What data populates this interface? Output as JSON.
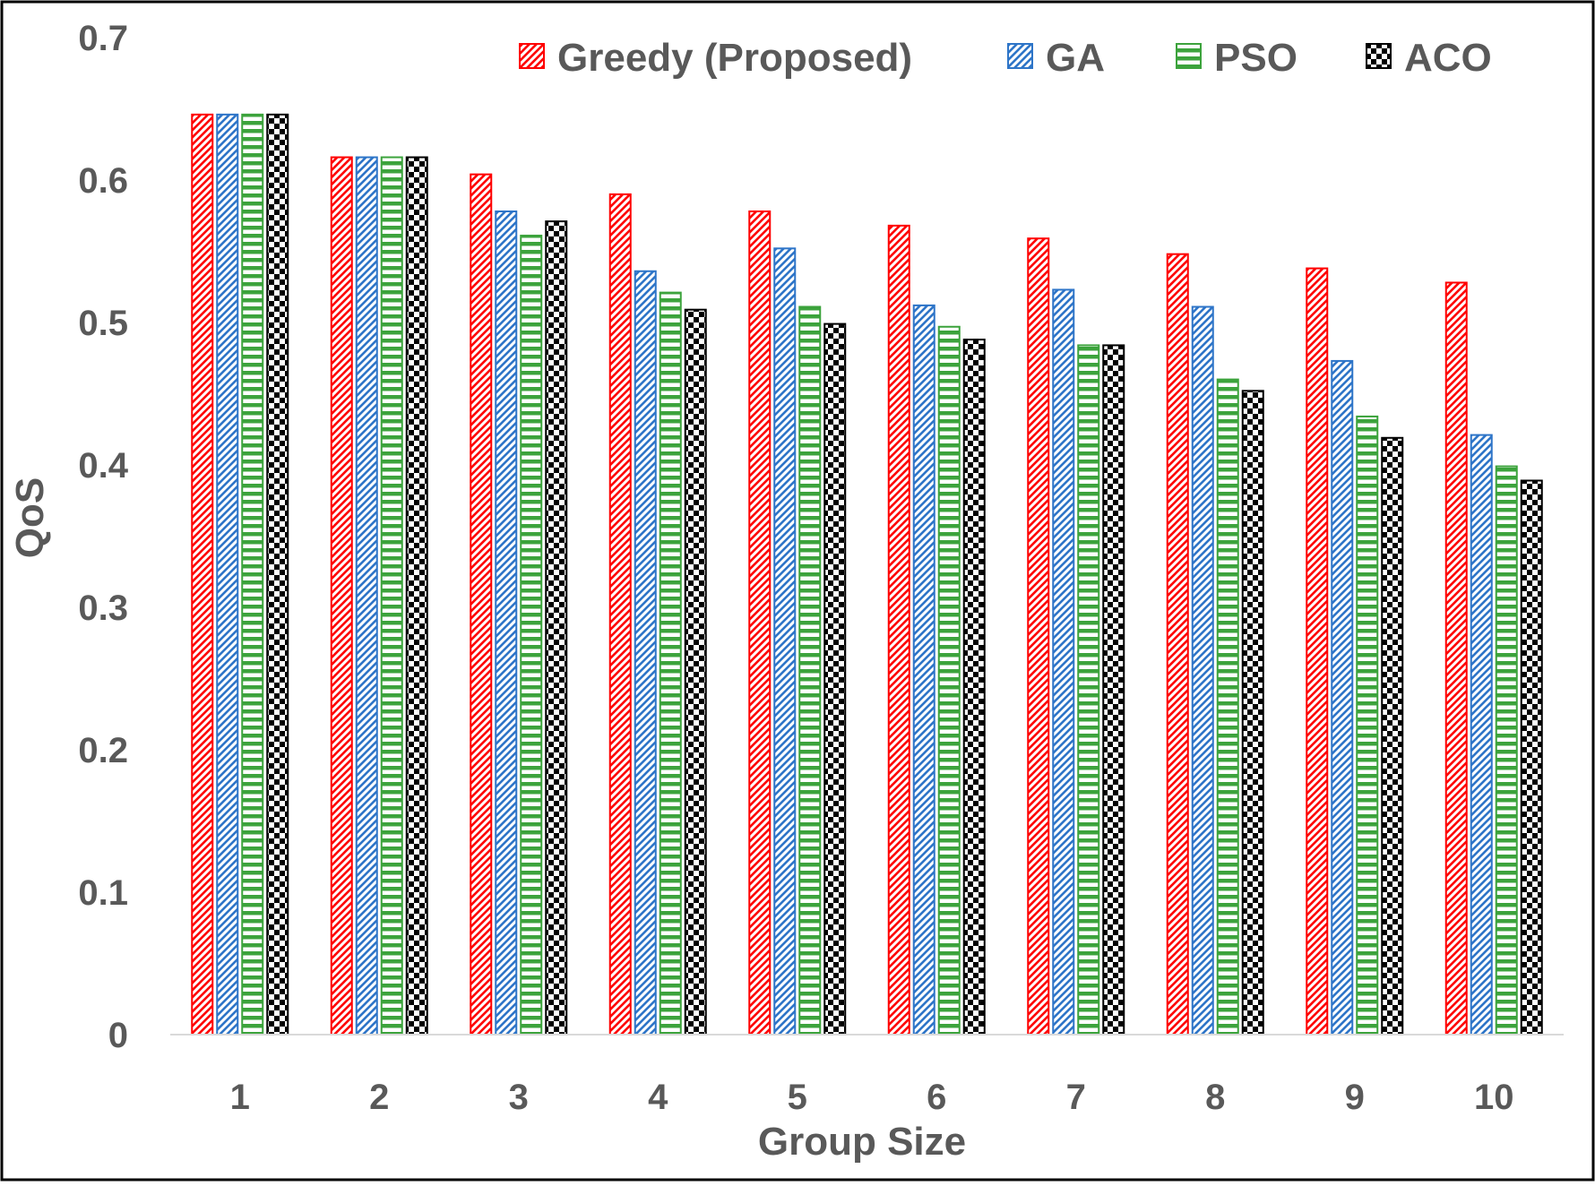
{
  "chart_data": {
    "type": "bar",
    "title": "",
    "xlabel": "Group Size",
    "ylabel": "QoS",
    "ylim": [
      0,
      0.7
    ],
    "yticks": [
      "0",
      "0.1",
      "0.2",
      "0.3",
      "0.4",
      "0.5",
      "0.6",
      "0.7"
    ],
    "ytick_values": [
      0,
      0.1,
      0.2,
      0.3,
      0.4,
      0.5,
      0.6,
      0.7
    ],
    "categories": [
      "1",
      "2",
      "3",
      "4",
      "5",
      "6",
      "7",
      "8",
      "9",
      "10"
    ],
    "grid": false,
    "legend_position": "top-right",
    "series": [
      {
        "name": "Greedy (Proposed)",
        "color": "#ff0000",
        "pattern": "diagonal-stripes",
        "values": [
          0.646,
          0.616,
          0.604,
          0.59,
          0.578,
          0.568,
          0.559,
          0.548,
          0.538,
          0.528
        ]
      },
      {
        "name": "GA",
        "color": "#2e75c8",
        "pattern": "diagonal-stripes",
        "values": [
          0.646,
          0.616,
          0.578,
          0.536,
          0.552,
          0.512,
          0.523,
          0.511,
          0.473,
          0.421
        ]
      },
      {
        "name": "PSO",
        "color": "#3ca33c",
        "pattern": "horizontal-stripes",
        "values": [
          0.646,
          0.616,
          0.561,
          0.521,
          0.511,
          0.497,
          0.484,
          0.46,
          0.434,
          0.399
        ]
      },
      {
        "name": "ACO",
        "color": "#000000",
        "pattern": "checkerboard",
        "values": [
          0.646,
          0.616,
          0.571,
          0.509,
          0.499,
          0.488,
          0.484,
          0.452,
          0.419,
          0.389
        ]
      }
    ]
  }
}
